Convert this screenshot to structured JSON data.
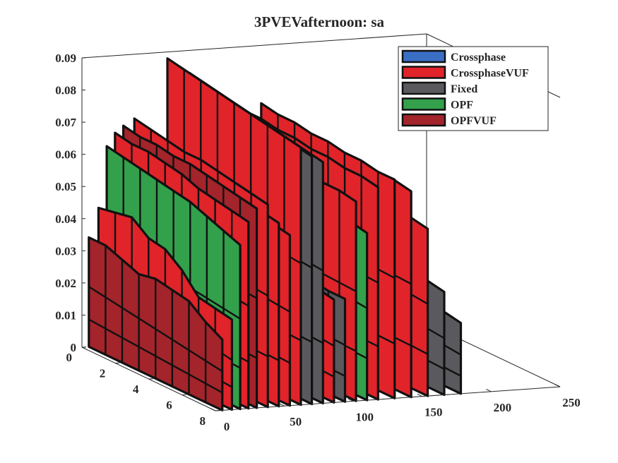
{
  "chart_data": {
    "type": "surface3d",
    "title": "3PVEVafternoon: sa",
    "xlabel": "",
    "ylabel": "",
    "zlabel": "",
    "y_axis": {
      "ticks": [
        0,
        2,
        4,
        6,
        8
      ],
      "range": [
        0,
        8
      ]
    },
    "x_axis": {
      "ticks": [
        0,
        50,
        100,
        150,
        200,
        250
      ],
      "range": [
        0,
        250
      ]
    },
    "z_axis": {
      "ticks": [
        0,
        0.01,
        0.02,
        0.03,
        0.04,
        0.05,
        0.06,
        0.07,
        0.08,
        0.09
      ],
      "range": [
        0,
        0.09
      ]
    },
    "grid": false,
    "legend_position": "top-right",
    "series": [
      {
        "name": "Crossphase",
        "color": "#3a6fc4"
      },
      {
        "name": "CrossphaseVUF",
        "color": "#e0242a"
      },
      {
        "name": "Fixed",
        "color": "#5a5a5e"
      },
      {
        "name": "OPF",
        "color": "#33a04c"
      },
      {
        "name": "OPFVUF",
        "color": "#a3242b"
      }
    ],
    "panels": [
      {
        "series": 4,
        "x": 5,
        "ylo": 0,
        "yhi": 8,
        "z": [
          0.034,
          0.034,
          0.032,
          0.03,
          0.031,
          0.03,
          0.029,
          0.025,
          0.022
        ]
      },
      {
        "series": 1,
        "x": 12,
        "ylo": 0,
        "yhi": 8,
        "z": [
          0.043,
          0.044,
          0.045,
          0.041,
          0.04,
          0.036,
          0.03,
          0.029,
          0.028
        ]
      },
      {
        "series": 3,
        "x": 18,
        "ylo": 0,
        "yhi": 8,
        "z": [
          0.062,
          0.061,
          0.06,
          0.059,
          0.058,
          0.057,
          0.055,
          0.053,
          0.051
        ]
      },
      {
        "series": 1,
        "x": 24,
        "ylo": 0,
        "yhi": 8,
        "z": [
          0.066,
          0.065,
          0.065,
          0.064,
          0.063,
          0.061,
          0.06,
          0.059,
          0.058
        ]
      },
      {
        "series": 4,
        "x": 30,
        "ylo": 0,
        "yhi": 8,
        "z": [
          0.068,
          0.067,
          0.067,
          0.066,
          0.066,
          0.065,
          0.064,
          0.063,
          0.062
        ]
      },
      {
        "series": 1,
        "x": 38,
        "ylo": 0,
        "yhi": 8,
        "z": [
          0.07,
          0.069,
          0.068,
          0.067,
          0.067,
          0.066,
          0.065,
          0.064,
          0.063
        ]
      },
      {
        "series": 1,
        "x": 46,
        "ylo": 0,
        "yhi": 8,
        "z": [
          0.066,
          0.065,
          0.064,
          0.063,
          0.062,
          0.061,
          0.06,
          0.058,
          0.057
        ]
      },
      {
        "series": 1,
        "x": 54,
        "ylo": 0,
        "yhi": 8,
        "z": [
          0.061,
          0.06,
          0.059,
          0.058,
          0.057,
          0.056,
          0.055,
          0.054,
          0.053
        ]
      },
      {
        "series": 1,
        "x": 62,
        "ylo": 0,
        "yhi": 8,
        "z": [
          0.088,
          0.087,
          0.086,
          0.085,
          0.084,
          0.083,
          0.082,
          0.081,
          0.08
        ]
      },
      {
        "series": 2,
        "x": 70,
        "ylo": 0,
        "yhi": 8,
        "z": [
          0.085,
          0.084,
          0.083,
          0.082,
          0.081,
          0.08,
          0.079,
          0.078,
          0.077
        ]
      },
      {
        "series": 2,
        "x": 78,
        "ylo": 0,
        "yhi": 8,
        "z": [
          0.083,
          0.082,
          0.081,
          0.08,
          0.079,
          0.078,
          0.077,
          0.076,
          0.075
        ]
      },
      {
        "series": 1,
        "x": 86,
        "ylo": 0,
        "yhi": 8,
        "z": [
          0.04,
          0.039,
          0.038,
          0.037,
          0.036,
          0.035,
          0.034,
          0.033,
          0.032
        ]
      },
      {
        "series": 2,
        "x": 94,
        "ylo": 0,
        "yhi": 8,
        "z": [
          0.036,
          0.035,
          0.035,
          0.034,
          0.034,
          0.033,
          0.033,
          0.032,
          0.032
        ]
      },
      {
        "series": 1,
        "x": 102,
        "ylo": 0,
        "yhi": 8,
        "z": [
          0.066,
          0.066,
          0.065,
          0.065,
          0.064,
          0.064,
          0.063,
          0.063,
          0.062
        ]
      },
      {
        "series": 3,
        "x": 110,
        "ylo": 0,
        "yhi": 8,
        "z": [
          0.06,
          0.059,
          0.058,
          0.057,
          0.056,
          0.055,
          0.054,
          0.053,
          0.052
        ]
      },
      {
        "series": 1,
        "x": 118,
        "ylo": 0,
        "yhi": 8,
        "z": [
          0.07,
          0.07,
          0.069,
          0.069,
          0.068,
          0.068,
          0.067,
          0.067,
          0.066
        ]
      },
      {
        "series": 1,
        "x": 130,
        "ylo": 0,
        "yhi": 8,
        "z": [
          0.072,
          0.071,
          0.071,
          0.07,
          0.07,
          0.069,
          0.069,
          0.068,
          0.068
        ]
      },
      {
        "series": 1,
        "x": 142,
        "ylo": 0,
        "yhi": 8,
        "z": [
          0.068,
          0.068,
          0.067,
          0.067,
          0.066,
          0.066,
          0.065,
          0.065,
          0.064
        ]
      },
      {
        "series": 1,
        "x": 154,
        "ylo": 0,
        "yhi": 8,
        "z": [
          0.06,
          0.059,
          0.058,
          0.057,
          0.056,
          0.055,
          0.054,
          0.053,
          0.052
        ]
      },
      {
        "series": 2,
        "x": 166,
        "ylo": 0,
        "yhi": 8,
        "z": [
          0.04,
          0.039,
          0.038,
          0.037,
          0.036,
          0.035,
          0.034,
          0.033,
          0.032
        ]
      },
      {
        "series": 2,
        "x": 178,
        "ylo": 0,
        "yhi": 8,
        "z": [
          0.03,
          0.029,
          0.028,
          0.027,
          0.026,
          0.025,
          0.024,
          0.023,
          0.022
        ]
      }
    ]
  }
}
